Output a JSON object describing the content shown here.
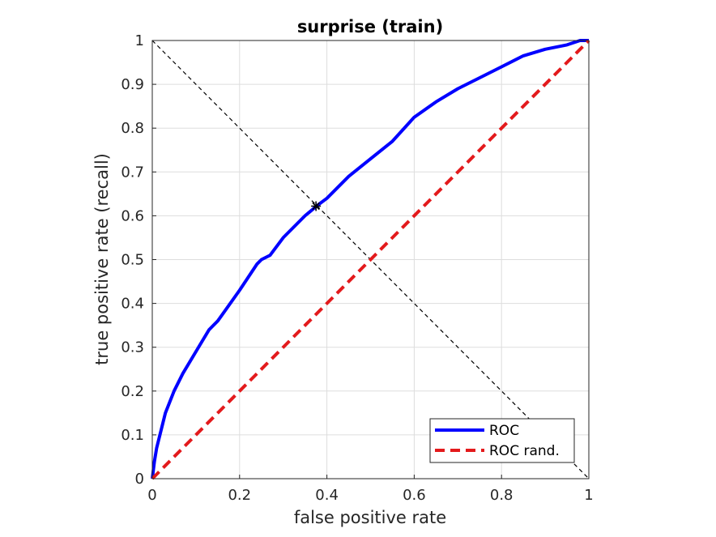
{
  "chart_data": {
    "type": "line",
    "title": "surprise (train)",
    "xlabel": "false positive rate",
    "ylabel": "true positive rate (recall)",
    "xlim": [
      0,
      1
    ],
    "ylim": [
      0,
      1
    ],
    "xticks": [
      0,
      0.2,
      0.4,
      0.6,
      0.8,
      1
    ],
    "xtick_labels": [
      "0",
      "0.2",
      "0.4",
      "0.6",
      "0.8",
      "1"
    ],
    "yticks": [
      0,
      0.1,
      0.2,
      0.3,
      0.4,
      0.5,
      0.6,
      0.7,
      0.8,
      0.9,
      1
    ],
    "ytick_labels": [
      "0",
      "0.1",
      "0.2",
      "0.3",
      "0.4",
      "0.5",
      "0.6",
      "0.7",
      "0.8",
      "0.9",
      "1"
    ],
    "grid": true,
    "legend_position": "bottom-right",
    "series": [
      {
        "name": "ROC",
        "color": "#0000ff",
        "style": "solid",
        "x": [
          0,
          0.005,
          0.01,
          0.02,
          0.03,
          0.05,
          0.07,
          0.1,
          0.13,
          0.15,
          0.2,
          0.24,
          0.25,
          0.27,
          0.3,
          0.35,
          0.38,
          0.4,
          0.45,
          0.5,
          0.55,
          0.6,
          0.65,
          0.7,
          0.75,
          0.8,
          0.85,
          0.9,
          0.95,
          0.98,
          1
        ],
        "y": [
          0,
          0.04,
          0.07,
          0.11,
          0.15,
          0.2,
          0.24,
          0.29,
          0.34,
          0.36,
          0.43,
          0.49,
          0.5,
          0.51,
          0.55,
          0.6,
          0.625,
          0.64,
          0.69,
          0.73,
          0.77,
          0.825,
          0.86,
          0.89,
          0.915,
          0.94,
          0.965,
          0.98,
          0.99,
          1,
          1
        ]
      },
      {
        "name": "ROC rand.",
        "color": "#e31a1c",
        "style": "dashed",
        "x": [
          0,
          1
        ],
        "y": [
          0,
          1
        ]
      }
    ],
    "reference_line": {
      "color": "#000000",
      "style": "dashed",
      "x": [
        0,
        1
      ],
      "y": [
        1,
        0
      ]
    },
    "marker": {
      "symbol": "asterisk",
      "color": "#000000",
      "x": 0.375,
      "y": 0.622
    }
  }
}
